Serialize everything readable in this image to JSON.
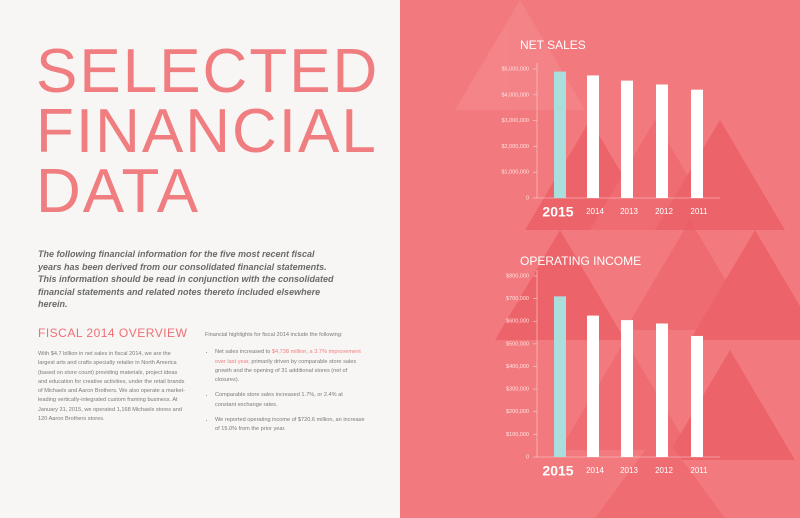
{
  "page": {
    "title_lines": [
      "SELECTED",
      "FINANCIAL",
      "DATA"
    ],
    "intro": "The following financial information for the five most recent fiscal years has been derived from our consolidated financial statements. This information should be read in conjunction with the consolidated financial statements and related notes thereto included elsewhere herein.",
    "overview_heading": "FISCAL 2014 OVERVIEW",
    "overview_text": "With $4.7 billion in net sales in fiscal 2014, we are the largest arts and crafts specialty retailer in North America (based on store count) providing materials, project ideas and education for creative activities, under the retail brands of Michaels and Aaron Brothers. We also operate a market-leading vertically-integrated custom framing business. At January 31, 2015, we operated 1,168 Michaels stores and 120 Aaron Brothers stores.",
    "highlights_intro": "Financial highlights for fiscal 2014 include the following:",
    "bullet_1": [
      "Net sales increased to ",
      "$4,738 million, a 3.7% improvement over last year,",
      " primarily driven by comparable store sales growth and the opening of 31 additional stores (net of closures)."
    ],
    "bullet_2": "Comparable store sales increased 1.7%, or 2.4% at constant exchange rates.",
    "bullet_3": "We reported operating income of $720.6 million, an increase of 15.0% from the prior year."
  },
  "chart_data": [
    {
      "type": "bar",
      "title": "NET SALES",
      "categories": [
        "2015",
        "2014",
        "2013",
        "2012",
        "2011"
      ],
      "values": [
        4900000,
        4750000,
        4550000,
        4400000,
        4200000
      ],
      "colors": [
        "#a9dedd",
        "#ffffff",
        "#ffffff",
        "#ffffff",
        "#ffffff"
      ],
      "ylim": [
        0,
        5000000
      ],
      "yticks": [
        0,
        {
          "value": 1000000,
          "label": "$1,000,000"
        },
        {
          "value": 2000000,
          "label": "$2,000,000"
        },
        {
          "value": 3000000,
          "label": "$3,000,000"
        },
        {
          "value": 4000000,
          "label": "$4,000,000"
        },
        {
          "value": 5000000,
          "label": "$5,000,000"
        }
      ]
    },
    {
      "type": "bar",
      "title": "OPERATING INCOME",
      "categories": [
        "2015",
        "2014",
        "2013",
        "2012",
        "2011"
      ],
      "values": [
        710000,
        625000,
        605000,
        590000,
        535000
      ],
      "colors": [
        "#a9dedd",
        "#ffffff",
        "#ffffff",
        "#ffffff",
        "#ffffff"
      ],
      "ylim": [
        0,
        800000
      ],
      "yticks": [
        0,
        {
          "value": 100000,
          "label": "$100,000"
        },
        {
          "value": 200000,
          "label": "$200,000"
        },
        {
          "value": 300000,
          "label": "$300,000"
        },
        {
          "value": 400000,
          "label": "$400,000"
        },
        {
          "value": 500000,
          "label": "$500,000"
        },
        {
          "value": 600000,
          "label": "$600,000"
        },
        {
          "value": 700000,
          "label": "$700,000"
        },
        {
          "value": 800000,
          "label": "$800,000"
        }
      ]
    }
  ]
}
